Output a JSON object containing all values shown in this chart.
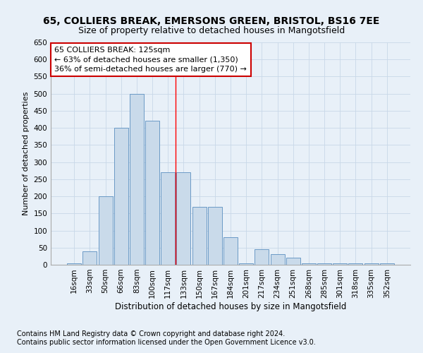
{
  "title1": "65, COLLIERS BREAK, EMERSONS GREEN, BRISTOL, BS16 7EE",
  "title2": "Size of property relative to detached houses in Mangotsfield",
  "xlabel": "Distribution of detached houses by size in Mangotsfield",
  "ylabel": "Number of detached properties",
  "footnote1": "Contains HM Land Registry data © Crown copyright and database right 2024.",
  "footnote2": "Contains public sector information licensed under the Open Government Licence v3.0.",
  "bar_labels": [
    "16sqm",
    "33sqm",
    "50sqm",
    "66sqm",
    "83sqm",
    "100sqm",
    "117sqm",
    "133sqm",
    "150sqm",
    "167sqm",
    "184sqm",
    "201sqm",
    "217sqm",
    "234sqm",
    "251sqm",
    "268sqm",
    "285sqm",
    "301sqm",
    "318sqm",
    "335sqm",
    "352sqm"
  ],
  "bar_values": [
    5,
    40,
    200,
    400,
    500,
    420,
    270,
    270,
    170,
    170,
    80,
    5,
    45,
    30,
    20,
    5,
    5,
    5,
    5,
    5,
    5
  ],
  "bar_color": "#c9daea",
  "bar_edge_color": "#5a8fc0",
  "grid_color": "#c8d8e8",
  "bg_color": "#e8f0f8",
  "annotation_line1": "65 COLLIERS BREAK: 125sqm",
  "annotation_line2": "← 63% of detached houses are smaller (1,350)",
  "annotation_line3": "36% of semi-detached houses are larger (770) →",
  "annotation_box_color": "#ffffff",
  "annotation_box_edge": "#cc0000",
  "ylim": [
    0,
    650
  ],
  "yticks": [
    0,
    50,
    100,
    150,
    200,
    250,
    300,
    350,
    400,
    450,
    500,
    550,
    600,
    650
  ],
  "title1_fontsize": 10,
  "title2_fontsize": 9,
  "xlabel_fontsize": 8.5,
  "ylabel_fontsize": 8,
  "tick_fontsize": 7.5,
  "annotation_fontsize": 8,
  "footnote_fontsize": 7
}
